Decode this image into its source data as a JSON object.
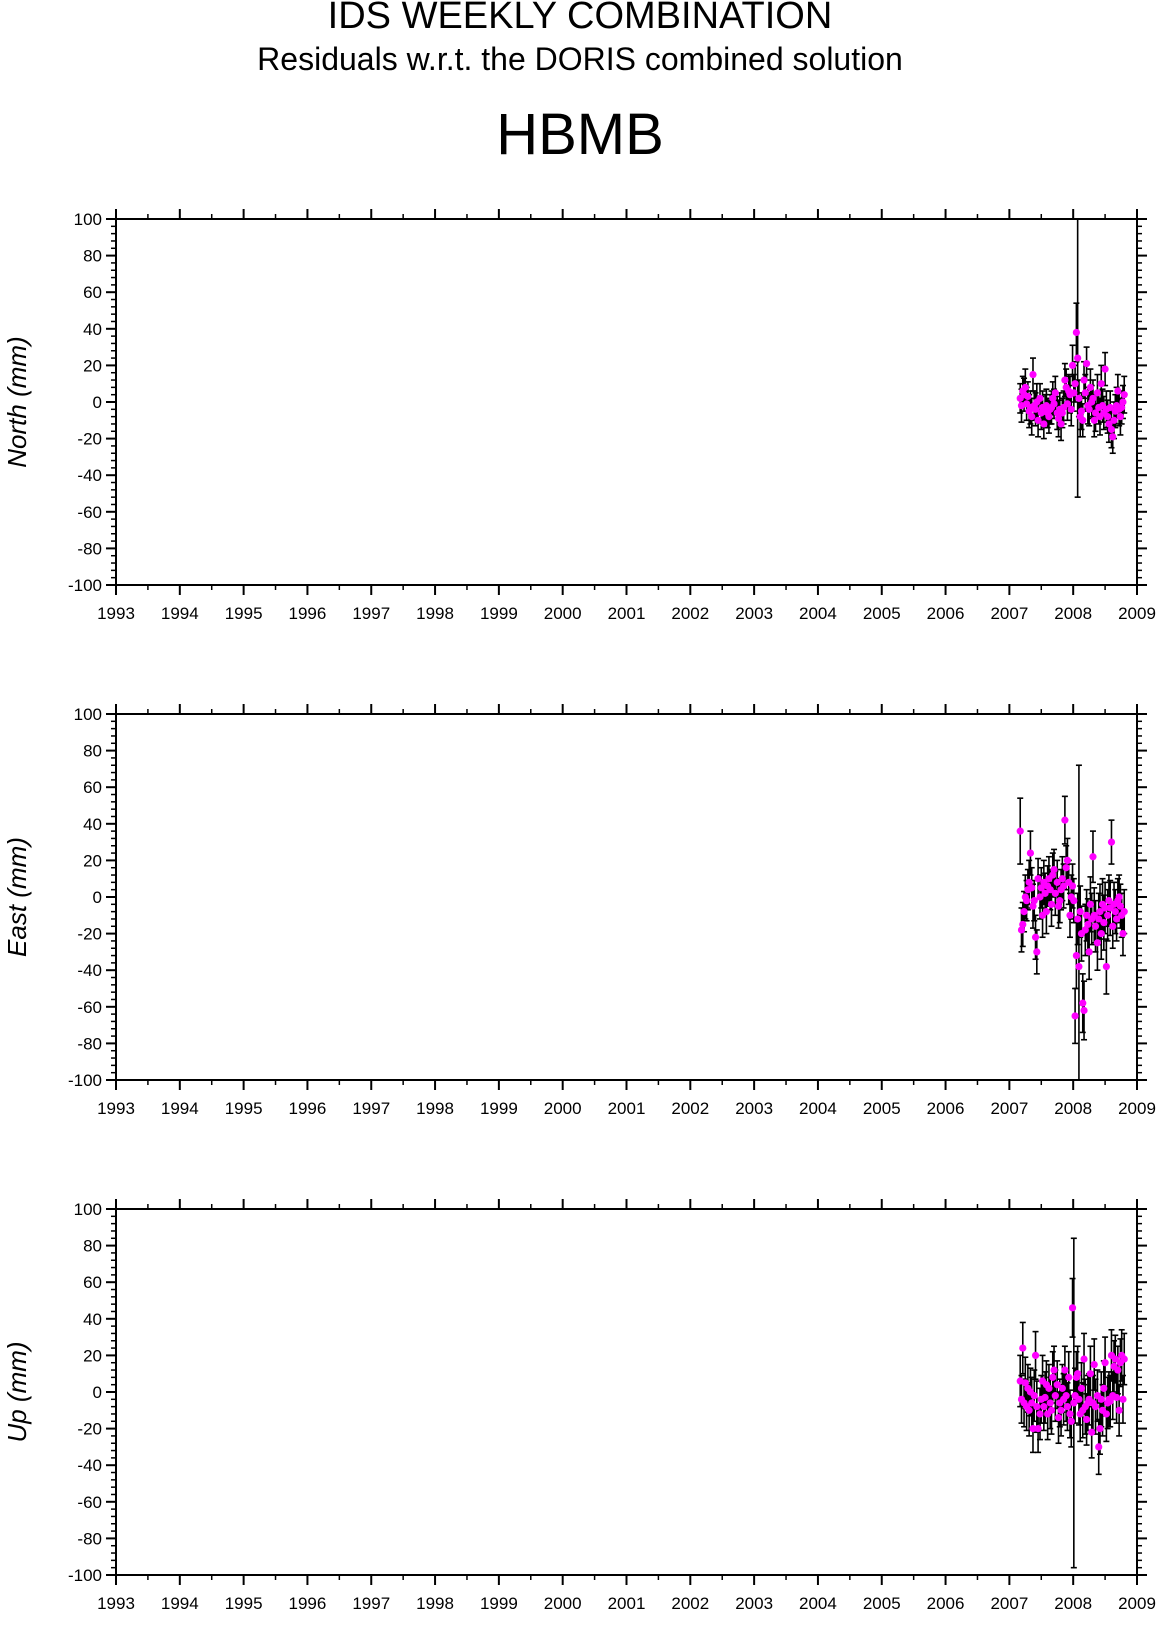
{
  "header": {
    "title": "IDS WEEKLY COMBINATION",
    "subtitle": "Residuals w.r.t. the DORIS combined solution",
    "station": "HBMB"
  },
  "colors": {
    "point": "#ff00ff",
    "errorbar": "#000000",
    "axis": "#000000"
  },
  "chart_data": [
    {
      "type": "scatter",
      "ylabel": "North (mm)",
      "xlim": [
        1993,
        2009
      ],
      "ylim": [
        -100,
        100
      ],
      "x_ticks": [
        "1993",
        "1994",
        "1995",
        "1996",
        "1997",
        "1998",
        "1999",
        "2000",
        "2001",
        "2002",
        "2003",
        "2004",
        "2005",
        "2006",
        "2007",
        "2008",
        "2009"
      ],
      "y_ticks": [
        "100",
        "80",
        "60",
        "40",
        "20",
        "0",
        "-20",
        "-40",
        "-60",
        "-80",
        "-100"
      ],
      "grid": false,
      "series": [
        {
          "x": [
            2007.17,
            2007.19,
            2007.21,
            2007.23,
            2007.25,
            2007.27,
            2007.29,
            2007.31,
            2007.33,
            2007.35,
            2007.37,
            2007.39,
            2007.41,
            2007.43,
            2007.45,
            2007.48,
            2007.5,
            2007.52,
            2007.54,
            2007.56,
            2007.58,
            2007.6,
            2007.62,
            2007.64,
            2007.66,
            2007.68,
            2007.7,
            2007.72,
            2007.75,
            2007.77,
            2007.79,
            2007.81,
            2007.83,
            2007.85,
            2007.87,
            2007.89,
            2007.91,
            2007.93,
            2007.95,
            2007.97,
            2007.99,
            2008.01,
            2008.03,
            2008.05,
            2008.07,
            2008.09,
            2008.11,
            2008.13,
            2008.15,
            2008.17,
            2008.19,
            2008.21,
            2008.23,
            2008.25,
            2008.27,
            2008.29,
            2008.31,
            2008.33,
            2008.35,
            2008.38,
            2008.4,
            2008.42,
            2008.44,
            2008.46,
            2008.48,
            2008.5,
            2008.52,
            2008.54,
            2008.56,
            2008.58,
            2008.6,
            2008.62,
            2008.64,
            2008.66,
            2008.68,
            2008.7,
            2008.72,
            2008.74,
            2008.76,
            2008.78,
            2008.8
          ],
          "y": [
            2,
            -2,
            6,
            4,
            8,
            -1,
            3,
            -5,
            -3,
            -8,
            15,
            -2,
            -4,
            0,
            -10,
            2,
            -6,
            -3,
            -12,
            -5,
            -2,
            -6,
            -8,
            -4,
            -3,
            2,
            -1,
            5,
            -6,
            -9,
            -4,
            -12,
            -6,
            -3,
            12,
            8,
            -1,
            6,
            4,
            -4,
            20,
            5,
            10,
            38,
            24,
            2,
            -8,
            -5,
            -10,
            12,
            5,
            21,
            -2,
            -4,
            8,
            0,
            2,
            -10,
            -6,
            5,
            -3,
            -8,
            10,
            -2,
            -6,
            18,
            -4,
            -8,
            -12,
            -3,
            -15,
            -19,
            -10,
            -5,
            -2,
            6,
            -4,
            -8,
            -3,
            0,
            4
          ],
          "err": [
            8,
            9,
            8,
            9,
            10,
            9,
            8,
            9,
            9,
            10,
            9,
            8,
            9,
            10,
            9,
            8,
            9,
            9,
            8,
            9,
            9,
            8,
            9,
            8,
            9,
            9,
            8,
            9,
            9,
            10,
            9,
            9,
            8,
            9,
            9,
            10,
            9,
            9,
            10,
            9,
            11,
            10,
            10,
            16,
            76,
            10,
            11,
            10,
            9,
            10,
            10,
            9,
            10,
            9,
            10,
            9,
            10,
            9,
            10,
            10,
            9,
            10,
            10,
            9,
            9,
            9,
            10,
            9,
            10,
            9,
            10,
            9,
            10,
            9,
            10,
            9,
            9,
            10,
            9,
            9,
            10
          ]
        }
      ]
    },
    {
      "type": "scatter",
      "ylabel": "East (mm)",
      "xlim": [
        1993,
        2009
      ],
      "ylim": [
        -100,
        100
      ],
      "x_ticks": [
        "1993",
        "1994",
        "1995",
        "1996",
        "1997",
        "1998",
        "1999",
        "2000",
        "2001",
        "2002",
        "2003",
        "2004",
        "2005",
        "2006",
        "2007",
        "2008",
        "2009"
      ],
      "y_ticks": [
        "100",
        "80",
        "60",
        "40",
        "20",
        "0",
        "-20",
        "-40",
        "-60",
        "-80",
        "-100"
      ],
      "grid": false,
      "series": [
        {
          "x": [
            2007.17,
            2007.19,
            2007.21,
            2007.23,
            2007.25,
            2007.27,
            2007.29,
            2007.31,
            2007.33,
            2007.35,
            2007.37,
            2007.39,
            2007.41,
            2007.43,
            2007.45,
            2007.48,
            2007.5,
            2007.52,
            2007.54,
            2007.56,
            2007.58,
            2007.6,
            2007.62,
            2007.64,
            2007.66,
            2007.68,
            2007.7,
            2007.72,
            2007.75,
            2007.77,
            2007.79,
            2007.81,
            2007.83,
            2007.85,
            2007.87,
            2007.89,
            2007.91,
            2007.93,
            2007.95,
            2007.97,
            2007.99,
            2008.01,
            2008.03,
            2008.05,
            2008.07,
            2008.09,
            2008.11,
            2008.13,
            2008.15,
            2008.17,
            2008.19,
            2008.21,
            2008.23,
            2008.25,
            2008.27,
            2008.29,
            2008.31,
            2008.33,
            2008.35,
            2008.38,
            2008.4,
            2008.42,
            2008.44,
            2008.46,
            2008.48,
            2008.5,
            2008.52,
            2008.54,
            2008.56,
            2008.58,
            2008.6,
            2008.62,
            2008.64,
            2008.66,
            2008.68,
            2008.7,
            2008.72,
            2008.74,
            2008.76,
            2008.78,
            2008.8
          ],
          "y": [
            36,
            -18,
            -15,
            -8,
            0,
            -2,
            4,
            8,
            24,
            5,
            -5,
            -2,
            -22,
            -30,
            10,
            0,
            5,
            -10,
            8,
            2,
            -8,
            6,
            10,
            4,
            -4,
            12,
            15,
            2,
            8,
            -5,
            -2,
            4,
            10,
            6,
            42,
            16,
            20,
            8,
            -10,
            0,
            6,
            -2,
            -65,
            -32,
            -12,
            -38,
            -8,
            -20,
            -58,
            -62,
            -18,
            -10,
            -15,
            -30,
            -4,
            -12,
            22,
            -10,
            -16,
            -25,
            -12,
            -8,
            -20,
            -4,
            -14,
            -6,
            -38,
            -10,
            -2,
            -6,
            30,
            -16,
            -4,
            -8,
            -12,
            -2,
            0,
            -5,
            -10,
            -20,
            -8
          ],
          "err": [
            18,
            12,
            12,
            11,
            12,
            11,
            11,
            12,
            12,
            11,
            12,
            11,
            12,
            12,
            11,
            12,
            11,
            12,
            12,
            11,
            12,
            11,
            12,
            11,
            12,
            12,
            11,
            12,
            12,
            12,
            12,
            11,
            12,
            12,
            13,
            12,
            12,
            12,
            12,
            12,
            12,
            12,
            15,
            18,
            14,
            110,
            14,
            15,
            16,
            16,
            14,
            14,
            14,
            15,
            15,
            14,
            14,
            15,
            14,
            15,
            14,
            15,
            14,
            14,
            15,
            14,
            15,
            14,
            14,
            15,
            12,
            12,
            12,
            12,
            12,
            12,
            12,
            12,
            12,
            12,
            12
          ]
        }
      ]
    },
    {
      "type": "scatter",
      "ylabel": "Up (mm)",
      "xlim": [
        1993,
        2009
      ],
      "ylim": [
        -100,
        100
      ],
      "x_ticks": [
        "1993",
        "1994",
        "1995",
        "1996",
        "1997",
        "1998",
        "1999",
        "2000",
        "2001",
        "2002",
        "2003",
        "2004",
        "2005",
        "2006",
        "2007",
        "2008",
        "2009"
      ],
      "y_ticks": [
        "100",
        "80",
        "60",
        "40",
        "20",
        "0",
        "-20",
        "-40",
        "-60",
        "-80",
        "-100"
      ],
      "grid": false,
      "series": [
        {
          "x": [
            2007.17,
            2007.19,
            2007.21,
            2007.23,
            2007.25,
            2007.27,
            2007.29,
            2007.31,
            2007.33,
            2007.35,
            2007.37,
            2007.39,
            2007.41,
            2007.43,
            2007.45,
            2007.48,
            2007.5,
            2007.52,
            2007.54,
            2007.56,
            2007.58,
            2007.6,
            2007.62,
            2007.64,
            2007.66,
            2007.68,
            2007.7,
            2007.72,
            2007.75,
            2007.77,
            2007.79,
            2007.81,
            2007.83,
            2007.85,
            2007.87,
            2007.89,
            2007.91,
            2007.93,
            2007.95,
            2007.97,
            2007.99,
            2008.01,
            2008.03,
            2008.05,
            2008.07,
            2008.09,
            2008.11,
            2008.13,
            2008.15,
            2008.17,
            2008.19,
            2008.21,
            2008.23,
            2008.25,
            2008.27,
            2008.29,
            2008.31,
            2008.33,
            2008.35,
            2008.38,
            2008.4,
            2008.42,
            2008.44,
            2008.46,
            2008.48,
            2008.5,
            2008.52,
            2008.54,
            2008.56,
            2008.58,
            2008.6,
            2008.62,
            2008.64,
            2008.66,
            2008.68,
            2008.7,
            2008.72,
            2008.74,
            2008.76,
            2008.78,
            2008.8
          ],
          "y": [
            6,
            -4,
            24,
            -6,
            5,
            -8,
            2,
            -10,
            0,
            -6,
            -20,
            -2,
            20,
            -8,
            -20,
            -12,
            -4,
            6,
            -8,
            -3,
            4,
            -12,
            2,
            -6,
            -10,
            8,
            12,
            -2,
            4,
            -14,
            -6,
            -10,
            2,
            -4,
            12,
            -2,
            -8,
            8,
            -12,
            -16,
            46,
            -6,
            -2,
            8,
            10,
            -4,
            -12,
            2,
            -10,
            18,
            -8,
            -15,
            -6,
            -4,
            10,
            -22,
            -6,
            15,
            -8,
            -2,
            -30,
            -20,
            -4,
            -10,
            2,
            16,
            -12,
            -6,
            -4,
            -5,
            20,
            -2,
            14,
            18,
            -3,
            12,
            -10,
            16,
            20,
            -4,
            18
          ],
          "err": [
            14,
            13,
            14,
            13,
            14,
            13,
            13,
            14,
            13,
            14,
            13,
            14,
            13,
            14,
            13,
            14,
            13,
            14,
            13,
            14,
            13,
            14,
            13,
            14,
            13,
            14,
            13,
            14,
            13,
            14,
            13,
            14,
            13,
            14,
            13,
            14,
            13,
            14,
            13,
            14,
            16,
            90,
            15,
            14,
            15,
            14,
            15,
            14,
            15,
            14,
            15,
            14,
            15,
            14,
            15,
            14,
            15,
            14,
            15,
            14,
            15,
            14,
            15,
            14,
            15,
            14,
            15,
            14,
            15,
            14,
            14,
            13,
            14,
            13,
            14,
            13,
            14,
            13,
            14,
            13,
            14
          ]
        }
      ]
    }
  ]
}
